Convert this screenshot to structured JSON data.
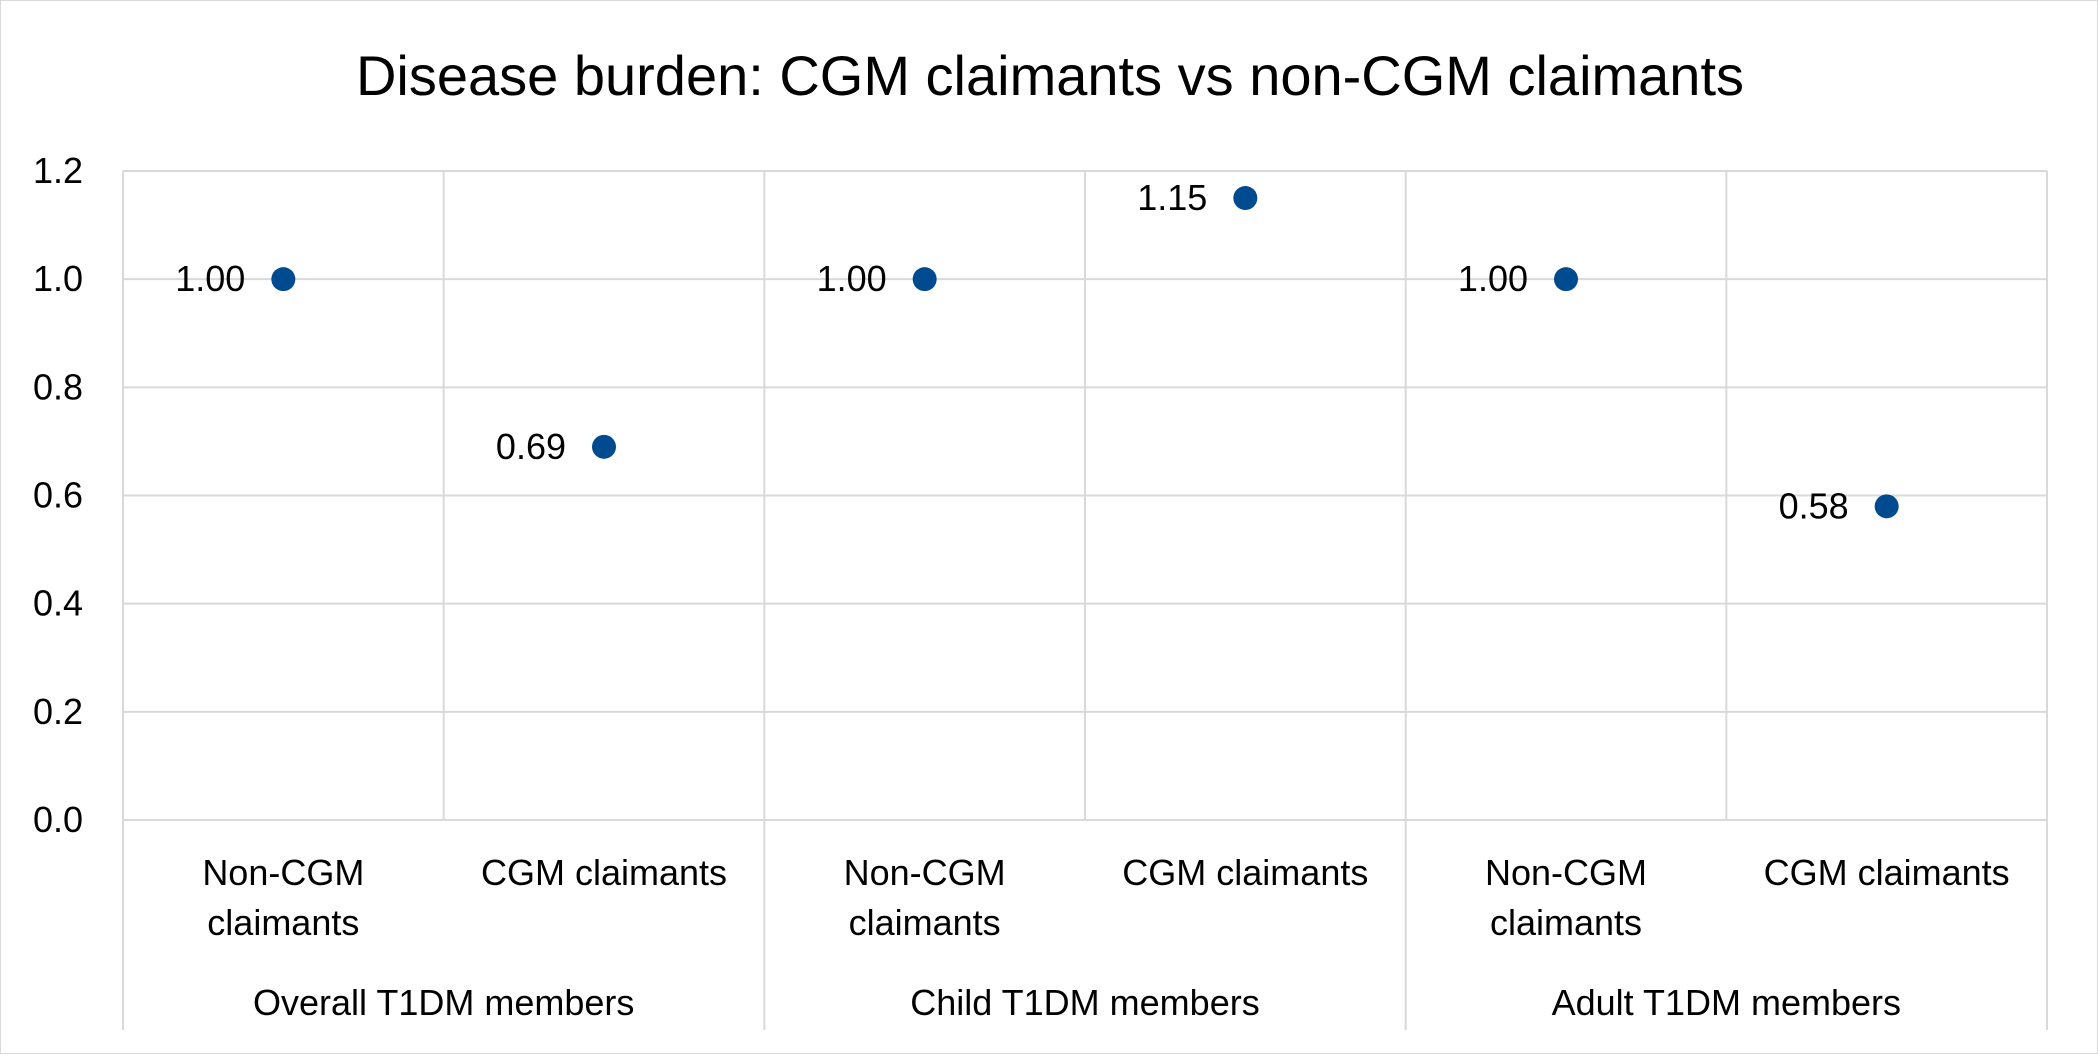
{
  "chart_data": {
    "type": "scatter",
    "title": "Disease burden: CGM claimants vs non-CGM claimants",
    "xlabel": "",
    "ylabel": "",
    "ylim": [
      0,
      1.2
    ],
    "y_ticks": [
      "0.0",
      "0.2",
      "0.4",
      "0.6",
      "0.8",
      "1.0",
      "1.2"
    ],
    "grid": true,
    "groups": [
      {
        "label": "Overall T1DM members",
        "categories": [
          {
            "label": [
              "Non-CGM",
              "claimants"
            ],
            "value": 1.0,
            "data_label": "1.00"
          },
          {
            "label": [
              "CGM claimants"
            ],
            "value": 0.69,
            "data_label": "0.69"
          }
        ]
      },
      {
        "label": "Child T1DM members",
        "categories": [
          {
            "label": [
              "Non-CGM",
              "claimants"
            ],
            "value": 1.0,
            "data_label": "1.00"
          },
          {
            "label": [
              "CGM claimants"
            ],
            "value": 1.15,
            "data_label": "1.15"
          }
        ]
      },
      {
        "label": "Adult T1DM members",
        "categories": [
          {
            "label": [
              "Non-CGM",
              "claimants"
            ],
            "value": 1.0,
            "data_label": "1.00"
          },
          {
            "label": [
              "CGM claimants"
            ],
            "value": 0.58,
            "data_label": "0.58"
          }
        ]
      }
    ]
  },
  "colors": {
    "marker": "#004a8f",
    "grid": "#d9d9d9"
  }
}
